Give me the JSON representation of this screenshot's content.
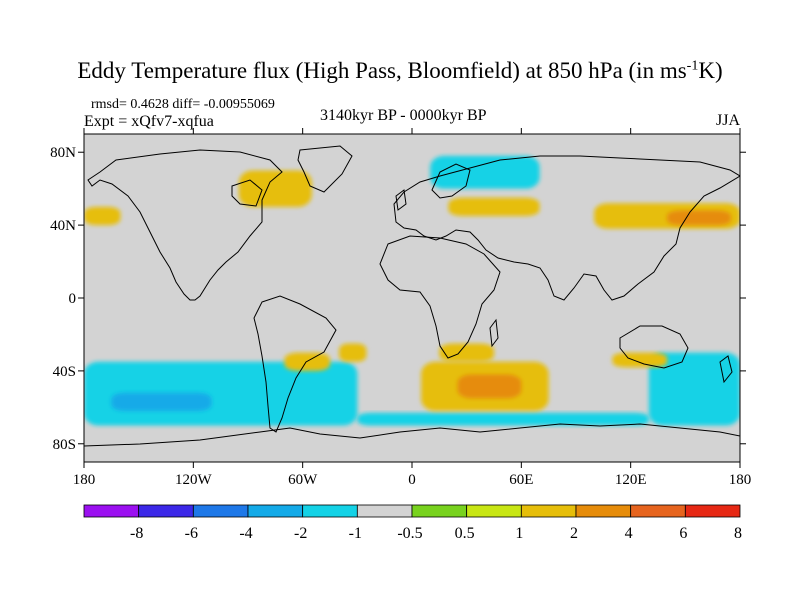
{
  "title": {
    "main": "Eddy Temperature flux (High Pass, Bloomfield) at 850 hPa (in ms",
    "sup": "-1",
    "tail": "K)"
  },
  "rmsd_line": "rmsd= 0.4628  diff= -0.00955069",
  "expt_line": "Expt = xQfv7-xqfua",
  "period": "3140kyr BP - 0000kyr BP",
  "season": "JJA",
  "colors": {
    "land_bg": "#d3d3d3",
    "coast": "#000000",
    "palette": [
      "#9b10f0",
      "#3c28e8",
      "#1e78e8",
      "#14aae8",
      "#14d2e6",
      "#d3d3d3",
      "#78d21e",
      "#c8e614",
      "#e6be0a",
      "#e68c0a",
      "#e6641e",
      "#e62814"
    ]
  },
  "chart_data": {
    "type": "heatmap",
    "title": "Eddy Temperature flux (High Pass, Bloomfield) at 850 hPa (in ms-1K)",
    "subtitle": "3140kyr BP - 0000kyr BP",
    "season": "JJA",
    "rmsd": 0.4628,
    "diff": -0.00955069,
    "experiment": "xQfv7-xqfua",
    "x_range": [
      -180,
      180
    ],
    "y_range": [
      -90,
      90
    ],
    "x_ticks": [
      {
        "value": -180,
        "label": "180"
      },
      {
        "value": -120,
        "label": "120W"
      },
      {
        "value": -60,
        "label": "60W"
      },
      {
        "value": 0,
        "label": "0"
      },
      {
        "value": 60,
        "label": "60E"
      },
      {
        "value": 120,
        "label": "120E"
      },
      {
        "value": 180,
        "label": "180"
      }
    ],
    "y_ticks": [
      {
        "value": 80,
        "label": "80N"
      },
      {
        "value": 40,
        "label": "40N"
      },
      {
        "value": 0,
        "label": "0"
      },
      {
        "value": -40,
        "label": "40S"
      },
      {
        "value": -80,
        "label": "80S"
      }
    ],
    "colorbar": {
      "levels": [
        "-8",
        "-6",
        "-4",
        "-2",
        "-1",
        "-0.5",
        "0.5",
        "1",
        "2",
        "4",
        "6",
        "8"
      ]
    },
    "regions": [
      {
        "name": "southern-ocean-west",
        "lon": [
          -180,
          -30
        ],
        "lat": [
          -70,
          -35
        ],
        "value": -1.5
      },
      {
        "name": "south-pacific-strong",
        "lon": [
          -165,
          -110
        ],
        "lat": [
          -62,
          -52
        ],
        "value": -3
      },
      {
        "name": "southern-ocean-east",
        "lon": [
          130,
          180
        ],
        "lat": [
          -70,
          -30
        ],
        "value": -1.5
      },
      {
        "name": "antarctic-coast-band",
        "lon": [
          -30,
          130
        ],
        "lat": [
          -70,
          -63
        ],
        "value": -1.5
      },
      {
        "name": "north-atlantic-nordic",
        "lon": [
          10,
          70
        ],
        "lat": [
          60,
          78
        ],
        "value": -1.5
      },
      {
        "name": "south-atlantic-indian",
        "lon": [
          5,
          75
        ],
        "lat": [
          -62,
          -35
        ],
        "value": 1
      },
      {
        "name": "south-atlantic-core",
        "lon": [
          25,
          60
        ],
        "lat": [
          -55,
          -42
        ],
        "value": 2
      },
      {
        "name": "south-africa-east",
        "lon": [
          15,
          45
        ],
        "lat": [
          -35,
          -25
        ],
        "value": 1
      },
      {
        "name": "north-pacific-east",
        "lon": [
          100,
          180
        ],
        "lat": [
          38,
          52
        ],
        "value": 1
      },
      {
        "name": "north-pacific-core",
        "lon": [
          140,
          175
        ],
        "lat": [
          40,
          48
        ],
        "value": 2
      },
      {
        "name": "north-pacific-west",
        "lon": [
          -180,
          -160
        ],
        "lat": [
          40,
          50
        ],
        "value": 1
      },
      {
        "name": "hudson-bay",
        "lon": [
          -95,
          -55
        ],
        "lat": [
          50,
          70
        ],
        "value": 1
      },
      {
        "name": "eurasia-north",
        "lon": [
          20,
          70
        ],
        "lat": [
          45,
          55
        ],
        "value": 1
      },
      {
        "name": "australia-east",
        "lon": [
          110,
          140
        ],
        "lat": [
          -38,
          -30
        ],
        "value": 1
      },
      {
        "name": "south-pacific-east-pos",
        "lon": [
          -70,
          -45
        ],
        "lat": [
          -40,
          -30
        ],
        "value": 1
      },
      {
        "name": "south-america-east-pos",
        "lon": [
          -40,
          -25
        ],
        "lat": [
          -35,
          -25
        ],
        "value": 1
      }
    ]
  }
}
